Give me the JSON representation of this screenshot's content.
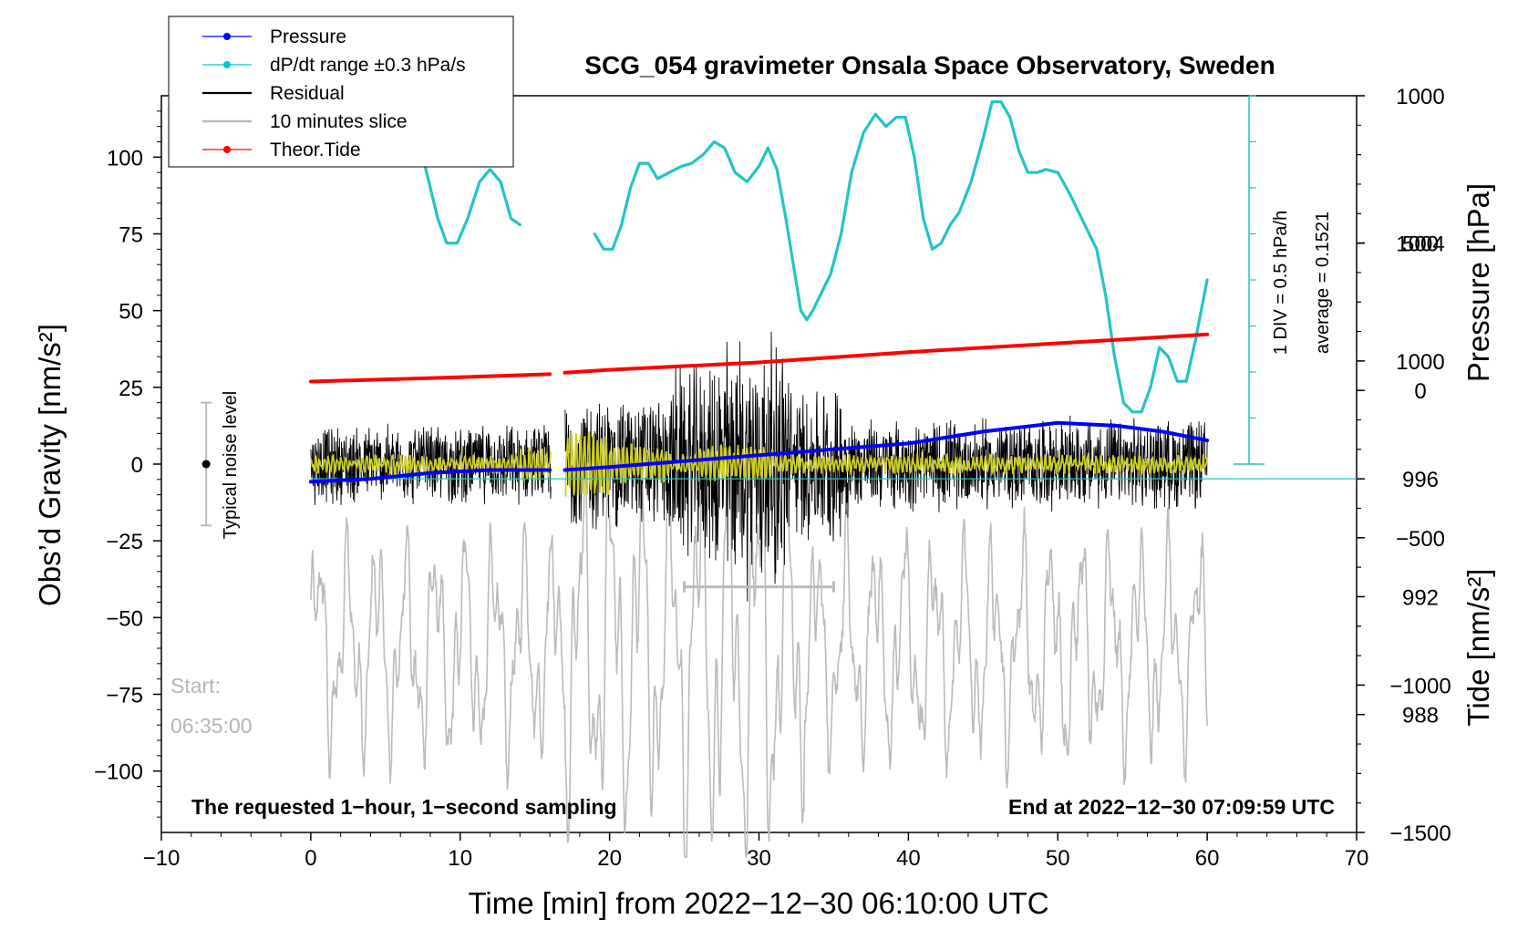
{
  "chart_data": {
    "type": "line",
    "title": "SCG_054 gravimeter Onsala Space Observatory, Sweden",
    "xlabel": "Time [min] from 2022−12−30 06:10:00 UTC",
    "ylabel_left": "Obs’d Gravity [nm/s²]",
    "ylabel_right_pressure": "Pressure [hPa]",
    "ylabel_right_tide": "Tide [nm/s²]",
    "xlim": [
      -10,
      70
    ],
    "ylim_left": [
      -120,
      120
    ],
    "ylim_pressure": [
      984,
      1009
    ],
    "ylim_tide": [
      -1500,
      1000
    ],
    "x_ticks": [
      {
        "value": -10,
        "label": "−10"
      },
      {
        "value": 0,
        "label": "0"
      },
      {
        "value": 10,
        "label": "10"
      },
      {
        "value": 20,
        "label": "20"
      },
      {
        "value": 30,
        "label": "30"
      },
      {
        "value": 40,
        "label": "40"
      },
      {
        "value": 50,
        "label": "50"
      },
      {
        "value": 60,
        "label": "60"
      },
      {
        "value": 70,
        "label": "70"
      }
    ],
    "y_left_ticks": [
      {
        "value": 100,
        "label": "100"
      },
      {
        "value": 75,
        "label": "75"
      },
      {
        "value": 50,
        "label": "50"
      },
      {
        "value": 25,
        "label": "25"
      },
      {
        "value": 0,
        "label": "0"
      },
      {
        "value": -25,
        "label": "−25"
      },
      {
        "value": -50,
        "label": "−50"
      },
      {
        "value": -75,
        "label": "−75"
      },
      {
        "value": -100,
        "label": "−100"
      }
    ],
    "y_pressure_ticks": [
      {
        "value": 1004,
        "label": "1004"
      },
      {
        "value": 1000,
        "label": "1000"
      },
      {
        "value": 996,
        "label": "996"
      },
      {
        "value": 992,
        "label": "992"
      },
      {
        "value": 988,
        "label": "988"
      }
    ],
    "y_tide_ticks": [
      {
        "value": 1000,
        "label": "1000"
      },
      {
        "value": 500,
        "label": "500"
      },
      {
        "value": 0,
        "label": "0"
      },
      {
        "value": -500,
        "label": "−500"
      },
      {
        "value": -1000,
        "label": "−1000"
      },
      {
        "value": -1500,
        "label": "−1500"
      }
    ],
    "legend": [
      {
        "label": "Pressure",
        "color": "#0000ff",
        "marker": true
      },
      {
        "label": "dP/dt range ±0.3 hPa/s",
        "color": "#00cccc",
        "marker": true
      },
      {
        "label": "Residual",
        "color": "#000000",
        "marker": false
      },
      {
        "label": "10 minutes slice",
        "color": "#bbbbbb",
        "marker": false
      },
      {
        "label": "Theor.Tide",
        "color": "#ff0000",
        "marker": true
      }
    ],
    "series": [
      {
        "name": "Pressure",
        "axis": "pressure",
        "color": "#0000ff",
        "x": [
          0,
          4,
          8,
          12,
          16,
          17,
          20,
          25,
          30,
          35,
          40,
          45,
          50,
          54,
          57,
          60
        ],
        "y": [
          995.9,
          996.0,
          996.2,
          996.3,
          996.3,
          996.3,
          996.4,
          996.6,
          996.8,
          997.0,
          997.2,
          997.6,
          997.9,
          997.8,
          997.6,
          997.3
        ]
      },
      {
        "name": "dP/dt",
        "axis": "left",
        "color": "#22c4c4",
        "x": [
          7.5,
          8,
          8.5,
          9.1,
          9.8,
          10.5,
          11.3,
          12,
          12.7,
          13.4,
          14,
          null,
          19,
          19.6,
          20.2,
          20.8,
          21.4,
          22,
          22.6,
          23.2,
          24,
          24.8,
          25.5,
          26.3,
          27,
          27.7,
          28.4,
          29.2,
          30,
          30.6,
          31.2,
          31.8,
          32.3,
          32.8,
          33.2,
          33.6,
          34.2,
          34.8,
          35.5,
          36.2,
          37,
          37.8,
          38.5,
          39.2,
          39.8,
          40.4,
          41,
          41.6,
          42.2,
          42.8,
          43.4,
          44.2,
          45,
          45.6,
          46.2,
          46.8,
          47.4,
          48,
          48.6,
          49.2,
          50,
          50.8,
          51.4,
          52,
          52.6,
          53.2,
          53.8,
          54.4,
          55,
          55.6,
          56.2,
          56.8,
          57.4,
          58,
          58.6,
          59.2,
          60
        ],
        "y": [
          100,
          90,
          80,
          72,
          72,
          80,
          92,
          96,
          92,
          80,
          78,
          null,
          75,
          70,
          70,
          78,
          90,
          98,
          98,
          93,
          95,
          97,
          98,
          101,
          105,
          103,
          95,
          92,
          97,
          103,
          96,
          80,
          65,
          50,
          47,
          50,
          56,
          62,
          75,
          95,
          108,
          114,
          110,
          113,
          113,
          100,
          80,
          70,
          72,
          78,
          82,
          92,
          106,
          118,
          118,
          113,
          102,
          95,
          95,
          96,
          95,
          88,
          82,
          76,
          70,
          55,
          35,
          20,
          17,
          17,
          25,
          38,
          35,
          27,
          27,
          40,
          60
        ]
      },
      {
        "name": "Theor.Tide",
        "axis": "tide",
        "color": "#ff0000",
        "x": [
          0,
          10,
          16,
          17,
          20,
          30,
          40,
          50,
          60
        ],
        "y": [
          30,
          45,
          55,
          60,
          70,
          95,
          130,
          160,
          190
        ]
      },
      {
        "name": "Residual",
        "axis": "left",
        "color": "#000000",
        "envelope": "noise centred on 0, amplitude ±12–25 (gap 16–17 min), up to ±50 near 27–32 min"
      },
      {
        "name": "10 minutes slice",
        "axis": "left",
        "color": "#bbbbbb",
        "envelope": "oscillation centred near −60, amplitude ±35–60"
      }
    ],
    "reference_pressure_line": 996,
    "noise_bar": {
      "x": -7,
      "center": 0,
      "half_range": 20,
      "label": "Typical noise level"
    },
    "slice_bar": {
      "x_start": 25,
      "x_end": 35,
      "y": -40
    },
    "dpdt_scale": {
      "label_div": "1 DIV = 0.5 hPa/h",
      "label_avg": "average = 0.1521"
    },
    "annotations": {
      "start_label": "Start:",
      "start_time": "06:35:00",
      "bottom_left": "The requested 1−hour, 1−second sampling",
      "bottom_right": "End at 2022−12−30 07:09:59 UTC"
    }
  }
}
